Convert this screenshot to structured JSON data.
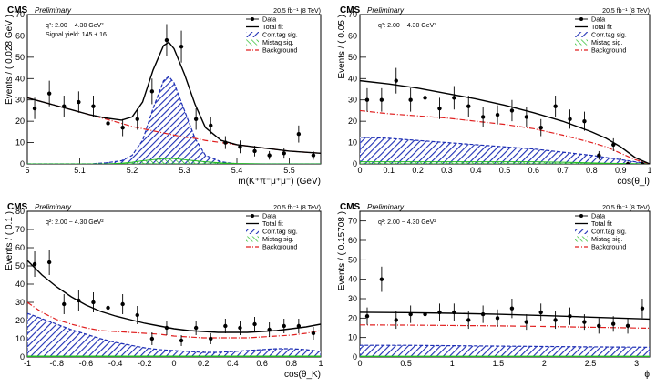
{
  "common": {
    "experiment": "CMS",
    "status": "Preliminary",
    "lumi": "20.5 fb⁻¹ (8 TeV)",
    "q2_label": "q²: 2.00 − 4.30 GeV²",
    "legend": [
      "Data",
      "Total fit",
      "Corr.tag sig.",
      "Mistag sig.",
      "Background"
    ],
    "colors": {
      "data": "#000000",
      "total": "#000000",
      "corr": "#1e2fb5",
      "mistag": "#22bb22",
      "bkg": "#e02020"
    }
  },
  "chart_data": [
    {
      "type": "scatter",
      "title": "",
      "xlabel": "m(K⁺π⁻μ⁺μ⁻) (GeV)",
      "ylabel": "Events / ( 0.028 GeV )",
      "xlim": [
        5.0,
        5.56
      ],
      "ylim": [
        0,
        70
      ],
      "xticks": [
        5.0,
        5.1,
        5.2,
        5.3,
        5.4,
        5.5
      ],
      "xticklabels": [
        "5",
        "5.1",
        "5.2",
        "5.3",
        "5.4",
        "5.5"
      ],
      "yticks": [
        0,
        10,
        20,
        30,
        40,
        50,
        60,
        70
      ],
      "extra_text": "Signal yield: 145 ± 16",
      "data": {
        "x": [
          5.014,
          5.042,
          5.07,
          5.098,
          5.126,
          5.154,
          5.182,
          5.21,
          5.238,
          5.266,
          5.294,
          5.322,
          5.35,
          5.378,
          5.406,
          5.434,
          5.462,
          5.49,
          5.518,
          5.546
        ],
        "y": [
          26,
          33,
          27,
          29,
          27,
          19,
          17,
          21,
          34,
          58,
          55,
          21,
          18,
          10,
          8,
          6,
          4,
          5,
          14,
          4
        ],
        "err": [
          5,
          6,
          5,
          5,
          5,
          4,
          4,
          5,
          6,
          7.5,
          7.5,
          5,
          4,
          3,
          3,
          2.5,
          2,
          2.5,
          4,
          2
        ]
      },
      "curves": {
        "x": [
          5.0,
          5.03,
          5.06,
          5.09,
          5.12,
          5.15,
          5.18,
          5.2,
          5.22,
          5.24,
          5.26,
          5.27,
          5.28,
          5.3,
          5.32,
          5.34,
          5.37,
          5.4,
          5.45,
          5.5,
          5.56
        ],
        "total": [
          31,
          29,
          27,
          25,
          23,
          21.5,
          20.5,
          22,
          29,
          44,
          55.5,
          57,
          54,
          42,
          28,
          17,
          11,
          9,
          7.5,
          6,
          5
        ],
        "corr": [
          0,
          0,
          0,
          0,
          0,
          0.5,
          1.5,
          4,
          11,
          26,
          39,
          41,
          38,
          25,
          12,
          4,
          1,
          0,
          0,
          0,
          0
        ],
        "mistag": [
          0,
          0,
          0,
          0,
          0,
          0,
          0.3,
          0.8,
          1.5,
          2,
          2.5,
          2.5,
          2.5,
          2,
          1.5,
          1,
          0.5,
          0.2,
          0,
          0,
          0
        ],
        "bkg": [
          31,
          29,
          27,
          25,
          23,
          21,
          19,
          17.5,
          16.5,
          15.5,
          14.5,
          14,
          13.5,
          12.5,
          12,
          11,
          10,
          9,
          7.5,
          6,
          5
        ]
      }
    },
    {
      "type": "scatter",
      "title": "",
      "xlabel": "cos(θ_l)",
      "ylabel": "Events / ( 0.05 )",
      "xlim": [
        0,
        1
      ],
      "ylim": [
        0,
        70
      ],
      "xticks": [
        0,
        0.1,
        0.2,
        0.3,
        0.4,
        0.5,
        0.6,
        0.7,
        0.8,
        0.9,
        1
      ],
      "xticklabels": [
        "0",
        "0.1",
        "0.2",
        "0.3",
        "0.4",
        "0.5",
        "0.6",
        "0.7",
        "0.8",
        "0.9",
        "1"
      ],
      "yticks": [
        0,
        10,
        20,
        30,
        40,
        50,
        60,
        70
      ],
      "data": {
        "x": [
          0.025,
          0.075,
          0.125,
          0.175,
          0.225,
          0.275,
          0.325,
          0.375,
          0.425,
          0.475,
          0.525,
          0.575,
          0.625,
          0.675,
          0.725,
          0.775,
          0.825,
          0.875,
          0.925,
          0.975
        ],
        "y": [
          30,
          30,
          39,
          30,
          31,
          26,
          31,
          27,
          22,
          23,
          25,
          22,
          17,
          27,
          21,
          20,
          4,
          9,
          0,
          0
        ],
        "err": [
          5.5,
          5.5,
          6,
          5.5,
          5.5,
          5,
          5.5,
          5,
          4.5,
          4.5,
          5,
          4.5,
          4,
          5,
          4.5,
          4.5,
          2,
          3,
          1,
          1
        ]
      },
      "curves": {
        "x": [
          0,
          0.1,
          0.2,
          0.3,
          0.4,
          0.5,
          0.6,
          0.7,
          0.8,
          0.85,
          0.9,
          0.95,
          1.0
        ],
        "total": [
          39,
          37.5,
          35.5,
          33,
          30.5,
          27.5,
          24,
          20,
          15,
          12,
          8,
          3,
          0
        ],
        "corr": [
          12.5,
          12,
          11,
          10,
          9,
          8,
          7,
          5.5,
          4,
          3,
          2,
          1,
          0
        ],
        "mistag": [
          1,
          1,
          1,
          1,
          1,
          1,
          1,
          0.8,
          0.5,
          0.3,
          0.2,
          0.1,
          0
        ],
        "bkg": [
          25,
          23.5,
          22.5,
          21.5,
          20,
          18.5,
          16.5,
          13.5,
          10,
          8,
          5,
          2,
          0
        ]
      }
    },
    {
      "type": "scatter",
      "title": "",
      "xlabel": "cos(θ_K)",
      "ylabel": "Events / ( 0.1 )",
      "xlim": [
        -1,
        1
      ],
      "ylim": [
        0,
        80
      ],
      "xticks": [
        -1,
        -0.8,
        -0.6,
        -0.4,
        -0.2,
        0,
        0.2,
        0.4,
        0.6,
        0.8,
        1
      ],
      "xticklabels": [
        "-1",
        "-0.8",
        "-0.6",
        "-0.4",
        "-0.2",
        "0",
        "0.2",
        "0.4",
        "0.6",
        "0.8",
        "1"
      ],
      "yticks": [
        0,
        10,
        20,
        30,
        40,
        50,
        60,
        70,
        80
      ],
      "data": {
        "x": [
          -0.95,
          -0.85,
          -0.75,
          -0.65,
          -0.55,
          -0.45,
          -0.35,
          -0.25,
          -0.15,
          -0.05,
          0.05,
          0.15,
          0.25,
          0.35,
          0.45,
          0.55,
          0.65,
          0.75,
          0.85,
          0.95
        ],
        "y": [
          51,
          52,
          29,
          31,
          30,
          27,
          29,
          23,
          10,
          16,
          9,
          16,
          10,
          17,
          16,
          18,
          15,
          17,
          17,
          13
        ],
        "err": [
          7,
          7,
          5.5,
          5.5,
          5.5,
          5,
          5.5,
          5,
          3.5,
          4,
          3,
          4,
          3,
          4,
          4,
          4,
          4,
          4,
          4,
          3.5
        ]
      },
      "curves": {
        "x": [
          -1,
          -0.9,
          -0.8,
          -0.7,
          -0.6,
          -0.5,
          -0.4,
          -0.3,
          -0.2,
          -0.1,
          0,
          0.1,
          0.2,
          0.3,
          0.4,
          0.5,
          0.6,
          0.7,
          0.8,
          0.9,
          1
        ],
        "total": [
          53,
          45,
          38.5,
          33,
          28.5,
          25,
          22.5,
          20.5,
          18.5,
          17,
          15.5,
          14.5,
          14,
          13.5,
          13.5,
          13.5,
          14,
          14.5,
          15.5,
          16.5,
          18
        ],
        "corr": [
          24,
          21,
          18,
          15,
          12.5,
          10,
          8,
          6.5,
          5,
          4,
          3.5,
          3,
          2.5,
          2.5,
          3,
          3.5,
          4,
          4.5,
          4.5,
          4,
          3
        ],
        "mistag": [
          0.5,
          0.5,
          0.5,
          0.5,
          0.5,
          0.5,
          0.5,
          0.5,
          0.5,
          0.5,
          0.5,
          0.5,
          0.5,
          0.5,
          0.5,
          0.5,
          0.5,
          0.5,
          0.5,
          0.5,
          0.5
        ],
        "bkg": [
          30,
          24.5,
          20.5,
          18,
          16,
          14.5,
          14,
          13.5,
          13,
          12.5,
          11.5,
          11,
          10.5,
          10.5,
          10.5,
          10.5,
          11,
          11.5,
          12,
          13,
          14.5
        ]
      }
    },
    {
      "type": "scatter",
      "title": "",
      "xlabel": "ϕ",
      "ylabel": "Events / ( 0.15708 )",
      "xlim": [
        0,
        3.1416
      ],
      "ylim": [
        0,
        75
      ],
      "xticks": [
        0,
        0.5,
        1,
        1.5,
        2,
        2.5,
        3
      ],
      "xticklabels": [
        "0",
        "0.5",
        "1",
        "1.5",
        "2",
        "2.5",
        "3"
      ],
      "yticks": [
        0,
        10,
        20,
        30,
        40,
        50,
        60,
        70
      ],
      "data": {
        "x": [
          0.079,
          0.236,
          0.393,
          0.55,
          0.707,
          0.864,
          1.021,
          1.178,
          1.335,
          1.492,
          1.649,
          1.806,
          1.963,
          2.12,
          2.277,
          2.434,
          2.591,
          2.748,
          2.905,
          3.062
        ],
        "y": [
          21,
          40,
          19,
          22,
          22,
          23,
          23,
          19,
          22,
          20,
          25,
          18,
          23,
          19,
          21,
          18,
          16,
          17,
          16,
          25
        ],
        "err": [
          4.5,
          6.5,
          4.5,
          4.5,
          4.5,
          4.5,
          4.5,
          4.5,
          4.5,
          4.5,
          5,
          4,
          4.5,
          4.5,
          4.5,
          4,
          4,
          4,
          4,
          5
        ]
      },
      "curves": {
        "x": [
          0,
          0.5,
          1.0,
          1.5,
          2.0,
          2.5,
          3.1416
        ],
        "total": [
          23,
          22.8,
          22.5,
          22,
          21.3,
          20.5,
          19.5
        ],
        "corr": [
          6,
          6,
          5.8,
          5.6,
          5.4,
          5.2,
          5
        ],
        "mistag": [
          0.4,
          0.4,
          0.4,
          0.4,
          0.4,
          0.4,
          0.4
        ],
        "bkg": [
          16.5,
          16.4,
          16.2,
          16,
          15.7,
          15.3,
          14.8
        ]
      }
    }
  ]
}
